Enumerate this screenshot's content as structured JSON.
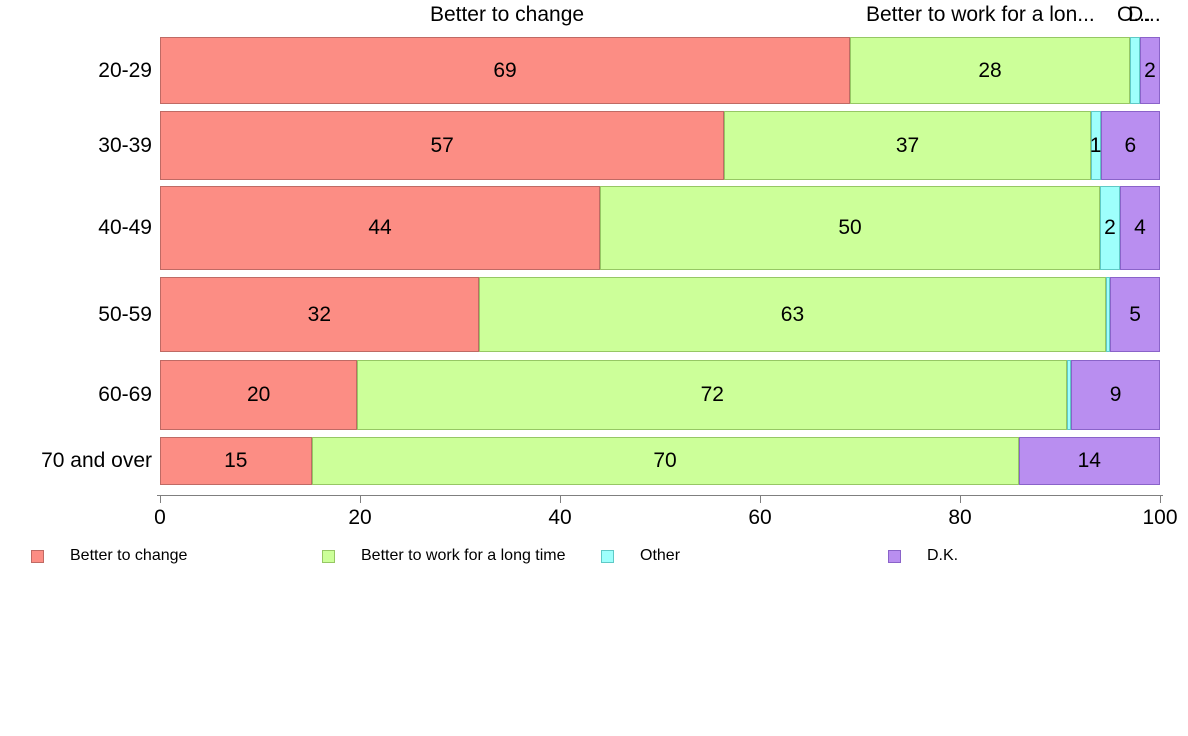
{
  "chart_data": {
    "type": "bar",
    "orientation": "horizontal",
    "stacked": true,
    "unit": "percent",
    "title": "",
    "column_headers": [
      {
        "label": "Better to change"
      },
      {
        "label": "Better to work for a lon..."
      },
      {
        "label": "O..."
      },
      {
        "label": "D..."
      }
    ],
    "categories": [
      "20-29",
      "30-39",
      "40-49",
      "50-59",
      "60-69",
      "70 and over"
    ],
    "series": [
      {
        "name": "Better to change",
        "color": "#fc8d84",
        "border": "#bf6a64",
        "values": [
          69,
          57,
          44,
          32,
          20,
          15
        ],
        "labels": [
          "69",
          "57",
          "44",
          "32",
          "20",
          "15"
        ]
      },
      {
        "name": "Better to work for a long time",
        "color": "#ccff99",
        "border": "#96c764",
        "values": [
          28,
          37,
          50,
          63,
          72,
          70
        ],
        "labels": [
          "28",
          "37",
          "50",
          "63",
          "72",
          "70"
        ]
      },
      {
        "name": "Other",
        "color": "#9efffc",
        "border": "#5fc9c6",
        "values": [
          1,
          1,
          2,
          0.4,
          0.4,
          0
        ],
        "labels": [
          "",
          "1",
          "2",
          "",
          "",
          ""
        ]
      },
      {
        "name": "D.K.",
        "color": "#b98ef0",
        "border": "#8a63c9",
        "values": [
          2,
          6,
          4,
          5,
          9,
          14
        ],
        "labels": [
          "2",
          "6",
          "4",
          "5",
          "9",
          "14"
        ]
      }
    ],
    "xlabel": "",
    "ylabel": "",
    "x_axis": {
      "min": 0,
      "max": 100,
      "ticks": [
        0,
        20,
        40,
        60,
        80,
        100
      ]
    },
    "grid": false,
    "legend": {
      "position": "bottom",
      "items": [
        {
          "label": "Better to change",
          "color": "#fc8d84",
          "border": "#bf6a64"
        },
        {
          "label": "Better to work for a long time",
          "color": "#ccff99",
          "border": "#96c764"
        },
        {
          "label": "Other",
          "color": "#9efffc",
          "border": "#5fc9c6"
        },
        {
          "label": "D.K.",
          "color": "#b98ef0",
          "border": "#8a63c9"
        }
      ]
    }
  }
}
